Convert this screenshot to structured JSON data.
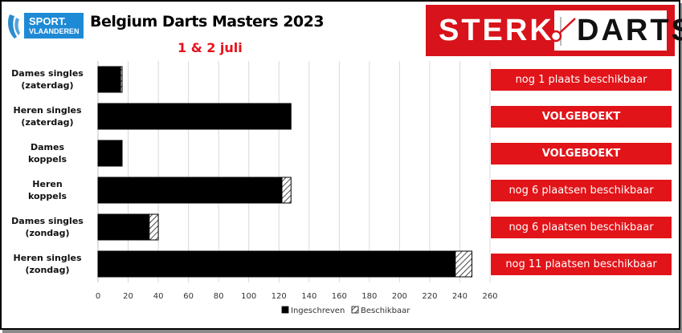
{
  "header": {
    "sponsor_logo_text": [
      "SPORT.",
      "VLAANDEREN"
    ],
    "title": "Belgium Darts Masters 2023",
    "subtitle": "1 & 2 juli",
    "brand_left": "STERK",
    "brand_right": "DARTS",
    "brand_color": "#d8131b"
  },
  "chart_data": {
    "type": "bar",
    "orientation": "horizontal",
    "stacked": true,
    "categories": [
      "Dames singles (zaterdag)",
      "Heren singles (zaterdag)",
      "Dames koppels",
      "Heren koppels",
      "Dames singles (zondag)",
      "Heren singles (zondag)"
    ],
    "category_lines": [
      [
        "Dames singles",
        "(zaterdag)"
      ],
      [
        "Heren singles",
        "(zaterdag)"
      ],
      [
        "Dames",
        "koppels"
      ],
      [
        "Heren",
        "koppels"
      ],
      [
        "Dames singles",
        "(zondag)"
      ],
      [
        "Heren singles",
        "(zondag)"
      ]
    ],
    "series": [
      {
        "name": "Ingeschreven",
        "values": [
          15,
          128,
          16,
          122,
          34,
          237
        ],
        "color": "#000000"
      },
      {
        "name": "Beschikbaar",
        "values": [
          1,
          0,
          0,
          6,
          6,
          11
        ],
        "pattern": "hatch"
      }
    ],
    "xlim": [
      0,
      260
    ],
    "xticks": [
      0,
      20,
      40,
      60,
      80,
      100,
      120,
      140,
      160,
      180,
      200,
      220,
      240,
      260
    ],
    "grid": "vertical",
    "legend": "bottom"
  },
  "status_labels": [
    {
      "text": "nog 1 plaats beschikbaar",
      "bold": false
    },
    {
      "text": "VOLGEBOEKT",
      "bold": true
    },
    {
      "text": "VOLGEBOEKT",
      "bold": true
    },
    {
      "text": "nog 6 plaatsen beschikbaar",
      "bold": false
    },
    {
      "text": "nog 6 plaatsen beschikbaar",
      "bold": false
    },
    {
      "text": "nog 11 plaatsen beschikbaar",
      "bold": false
    }
  ]
}
